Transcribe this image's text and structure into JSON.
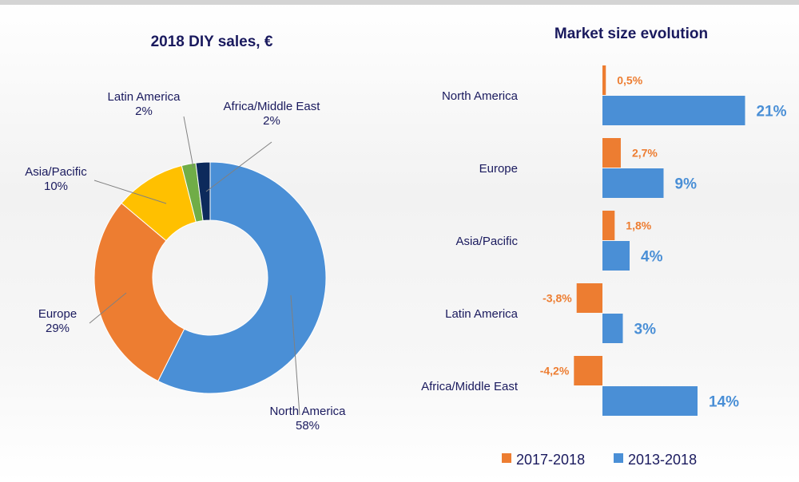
{
  "chart_data": [
    {
      "type": "pie",
      "variant": "donut",
      "title": "2018 DIY sales, €",
      "categories": [
        "North America",
        "Europe",
        "Asia/Pacific",
        "Latin America",
        "Africa/Middle East"
      ],
      "values": [
        58,
        29,
        10,
        2,
        2
      ],
      "labels": [
        "58%",
        "29%",
        "10%",
        "2%",
        "2%"
      ],
      "colors": [
        "#4a8fd6",
        "#ed7d31",
        "#ffc000",
        "#70ad47",
        "#0d2a5c"
      ]
    },
    {
      "type": "bar",
      "orientation": "horizontal",
      "title": "Market size evolution",
      "categories": [
        "North America",
        "Europe",
        "Asia/Pacific",
        "Latin America",
        "Africa/Middle East"
      ],
      "series": [
        {
          "name": "2017-2018",
          "values": [
            0.5,
            2.7,
            1.8,
            -3.8,
            -4.2
          ],
          "labels": [
            "0,5%",
            "2,7%",
            "1,8%",
            "-3,8%",
            "-4,2%"
          ],
          "color": "#ed7d31"
        },
        {
          "name": "2013-2018",
          "values": [
            21,
            9,
            4,
            3,
            14
          ],
          "labels": [
            "21%",
            "9%",
            "4%",
            "3%",
            "14%"
          ],
          "color": "#4a8fd6"
        }
      ],
      "legend": "bottom"
    }
  ]
}
